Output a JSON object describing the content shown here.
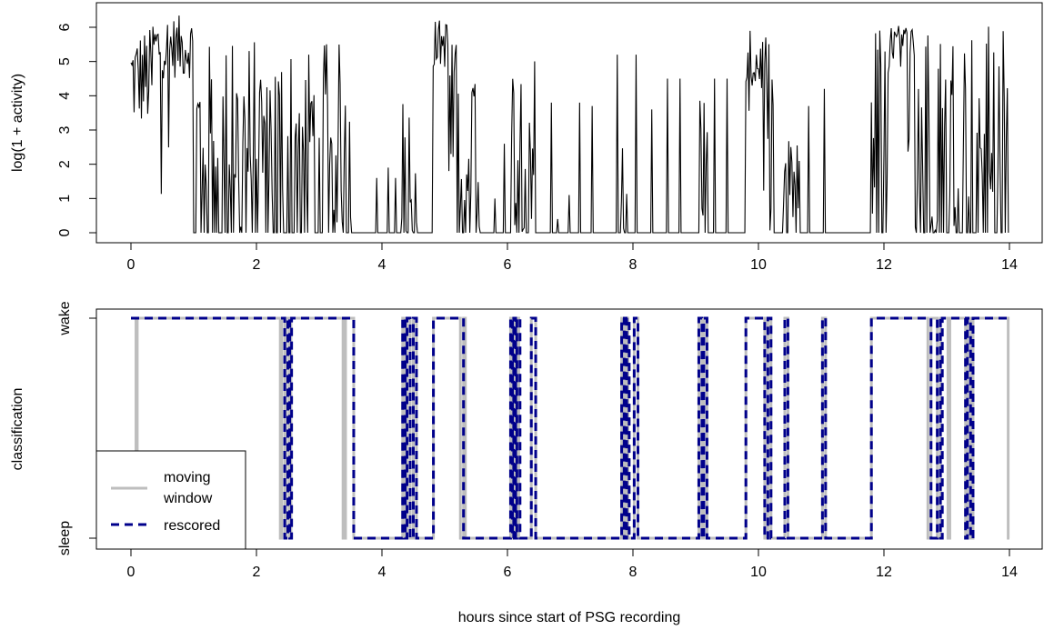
{
  "chart_data": [
    {
      "type": "line",
      "title": "",
      "xlabel": "",
      "ylabel": "log(1 + activity)",
      "xlim": [
        0,
        14
      ],
      "ylim": [
        0,
        6.4
      ],
      "xticks": [
        "0",
        "2",
        "4",
        "6",
        "8",
        "10",
        "12",
        "14"
      ],
      "yticks": [
        "0",
        "1",
        "2",
        "3",
        "4",
        "5",
        "6"
      ],
      "grid": false,
      "series": [
        {
          "color": "#000000",
          "note_type": "dense activity trace (approximate bursts, hours vs value)",
          "bursts": [
            {
              "start": 0.0,
              "end": 0.35,
              "peak": 6.0,
              "base": 3.0
            },
            {
              "start": 0.35,
              "end": 1.0,
              "peak": 6.35,
              "base": 4.5
            },
            {
              "start": 1.0,
              "end": 1.7,
              "peak": 5.6,
              "base": 0.0
            },
            {
              "start": 1.7,
              "end": 2.5,
              "peak": 5.7,
              "base": 0.0
            },
            {
              "start": 2.5,
              "end": 3.4,
              "peak": 5.6,
              "base": 0.0
            },
            {
              "start": 3.4,
              "end": 3.6,
              "peak": 5.7,
              "base": 0.0
            },
            {
              "start": 4.3,
              "end": 4.55,
              "peak": 4.1,
              "base": 0.0
            },
            {
              "start": 4.8,
              "end": 5.05,
              "peak": 6.25,
              "base": 4.8
            },
            {
              "start": 5.05,
              "end": 5.55,
              "peak": 5.7,
              "base": 0.0
            },
            {
              "start": 6.05,
              "end": 6.45,
              "peak": 5.5,
              "base": 0.0
            },
            {
              "start": 7.8,
              "end": 7.9,
              "peak": 5.0,
              "base": 0.0
            },
            {
              "start": 9.05,
              "end": 9.2,
              "peak": 4.8,
              "base": 0.0
            },
            {
              "start": 9.8,
              "end": 10.15,
              "peak": 5.9,
              "base": 4.0
            },
            {
              "start": 10.15,
              "end": 10.25,
              "peak": 5.7,
              "base": 0.0
            },
            {
              "start": 10.4,
              "end": 10.7,
              "peak": 2.8,
              "base": 0.0
            },
            {
              "start": 11.8,
              "end": 12.1,
              "peak": 6.3,
              "base": 0.0
            },
            {
              "start": 12.1,
              "end": 12.5,
              "peak": 6.1,
              "base": 5.0
            },
            {
              "start": 12.5,
              "end": 14.0,
              "peak": 6.15,
              "base": 0.0
            }
          ],
          "spikes": [
            {
              "x": 3.92,
              "y": 1.6
            },
            {
              "x": 4.1,
              "y": 1.9
            },
            {
              "x": 4.22,
              "y": 1.6
            },
            {
              "x": 5.8,
              "y": 1.0
            },
            {
              "x": 5.95,
              "y": 2.6
            },
            {
              "x": 6.7,
              "y": 3.8
            },
            {
              "x": 6.8,
              "y": 0.4
            },
            {
              "x": 6.98,
              "y": 1.1
            },
            {
              "x": 7.15,
              "y": 3.8
            },
            {
              "x": 7.35,
              "y": 3.7
            },
            {
              "x": 7.75,
              "y": 5.2
            },
            {
              "x": 8.05,
              "y": 5.2
            },
            {
              "x": 8.3,
              "y": 3.6
            },
            {
              "x": 8.55,
              "y": 4.5
            },
            {
              "x": 8.75,
              "y": 4.5
            },
            {
              "x": 9.3,
              "y": 4.5
            },
            {
              "x": 9.5,
              "y": 4.5
            },
            {
              "x": 10.8,
              "y": 3.7
            },
            {
              "x": 11.05,
              "y": 4.2
            }
          ]
        }
      ]
    },
    {
      "type": "line",
      "title": "",
      "xlabel": "hours since start of PSG recording",
      "ylabel": "classification",
      "xlim": [
        0,
        14
      ],
      "xticks": [
        "0",
        "2",
        "4",
        "6",
        "8",
        "10",
        "12",
        "14"
      ],
      "yticks": [
        "sleep",
        "wake"
      ],
      "grid": false,
      "legend": {
        "placement": "bottom-left",
        "entries": [
          "moving\nwindow",
          "rescored"
        ]
      },
      "series": [
        {
          "name": "moving window",
          "color": "#bebebe",
          "style": "solid",
          "steps": [
            [
              0.0,
              "wake"
            ],
            [
              0.05,
              "wake"
            ],
            [
              0.08,
              "mid"
            ],
            [
              0.1,
              "wake"
            ],
            [
              2.38,
              "sleep"
            ],
            [
              2.4,
              "wake"
            ],
            [
              2.45,
              "sleep"
            ],
            [
              2.47,
              "wake"
            ],
            [
              2.52,
              "sleep"
            ],
            [
              2.55,
              "wake"
            ],
            [
              3.38,
              "sleep"
            ],
            [
              3.42,
              "wake"
            ],
            [
              3.55,
              "sleep"
            ],
            [
              4.33,
              "wake"
            ],
            [
              4.37,
              "sleep"
            ],
            [
              4.4,
              "wake"
            ],
            [
              4.45,
              "sleep"
            ],
            [
              4.5,
              "wake"
            ],
            [
              4.55,
              "sleep"
            ],
            [
              4.82,
              "wake"
            ],
            [
              5.25,
              "sleep"
            ],
            [
              5.3,
              "wake"
            ],
            [
              5.33,
              "sleep"
            ],
            [
              6.05,
              "wake"
            ],
            [
              6.08,
              "sleep"
            ],
            [
              6.1,
              "wake"
            ],
            [
              6.13,
              "sleep"
            ],
            [
              6.15,
              "wake"
            ],
            [
              6.18,
              "sleep"
            ],
            [
              6.38,
              "wake"
            ],
            [
              6.45,
              "sleep"
            ],
            [
              7.82,
              "wake"
            ],
            [
              7.85,
              "sleep"
            ],
            [
              7.88,
              "wake"
            ],
            [
              7.92,
              "sleep"
            ],
            [
              8.02,
              "wake"
            ],
            [
              8.08,
              "sleep"
            ],
            [
              9.05,
              "wake"
            ],
            [
              9.1,
              "sleep"
            ],
            [
              9.13,
              "wake"
            ],
            [
              9.18,
              "sleep"
            ],
            [
              9.8,
              "wake"
            ],
            [
              10.1,
              "sleep"
            ],
            [
              10.15,
              "wake"
            ],
            [
              10.2,
              "sleep"
            ],
            [
              10.42,
              "wake"
            ],
            [
              10.47,
              "sleep"
            ],
            [
              11.02,
              "wake"
            ],
            [
              11.07,
              "sleep"
            ],
            [
              11.8,
              "wake"
            ],
            [
              12.7,
              "sleep"
            ],
            [
              12.75,
              "wake"
            ],
            [
              12.85,
              "sleep"
            ],
            [
              12.9,
              "wake"
            ],
            [
              13.02,
              "sleep"
            ],
            [
              13.05,
              "wake"
            ],
            [
              13.3,
              "sleep"
            ],
            [
              13.33,
              "wake"
            ],
            [
              13.38,
              "sleep"
            ],
            [
              13.42,
              "wake"
            ],
            [
              13.98,
              "sleep"
            ],
            [
              14.0,
              "sleep"
            ]
          ]
        },
        {
          "name": "rescored",
          "color": "#00008b",
          "style": "dashed",
          "steps": [
            [
              0.0,
              "wake"
            ],
            [
              2.45,
              "sleep"
            ],
            [
              2.5,
              "wake"
            ],
            [
              2.53,
              "sleep"
            ],
            [
              2.56,
              "wake"
            ],
            [
              3.55,
              "sleep"
            ],
            [
              4.33,
              "wake"
            ],
            [
              4.37,
              "sleep"
            ],
            [
              4.4,
              "wake"
            ],
            [
              4.45,
              "sleep"
            ],
            [
              4.5,
              "wake"
            ],
            [
              4.55,
              "sleep"
            ],
            [
              4.82,
              "wake"
            ],
            [
              5.3,
              "sleep"
            ],
            [
              6.05,
              "wake"
            ],
            [
              6.08,
              "sleep"
            ],
            [
              6.1,
              "wake"
            ],
            [
              6.13,
              "sleep"
            ],
            [
              6.15,
              "wake"
            ],
            [
              6.2,
              "sleep"
            ],
            [
              6.38,
              "wake"
            ],
            [
              6.45,
              "sleep"
            ],
            [
              7.82,
              "wake"
            ],
            [
              7.86,
              "sleep"
            ],
            [
              7.9,
              "wake"
            ],
            [
              7.94,
              "sleep"
            ],
            [
              8.02,
              "wake"
            ],
            [
              8.08,
              "sleep"
            ],
            [
              9.05,
              "wake"
            ],
            [
              9.1,
              "sleep"
            ],
            [
              9.13,
              "wake"
            ],
            [
              9.18,
              "sleep"
            ],
            [
              9.8,
              "wake"
            ],
            [
              10.1,
              "sleep"
            ],
            [
              10.15,
              "wake"
            ],
            [
              10.2,
              "sleep"
            ],
            [
              10.42,
              "wake"
            ],
            [
              10.47,
              "sleep"
            ],
            [
              11.02,
              "wake"
            ],
            [
              11.07,
              "sleep"
            ],
            [
              11.8,
              "wake"
            ],
            [
              12.75,
              "sleep"
            ],
            [
              12.85,
              "wake"
            ],
            [
              12.9,
              "sleep"
            ],
            [
              12.93,
              "wake"
            ],
            [
              13.3,
              "sleep"
            ],
            [
              13.33,
              "wake"
            ],
            [
              13.38,
              "sleep"
            ],
            [
              13.42,
              "wake"
            ],
            [
              14.0,
              "wake"
            ]
          ]
        }
      ]
    }
  ]
}
